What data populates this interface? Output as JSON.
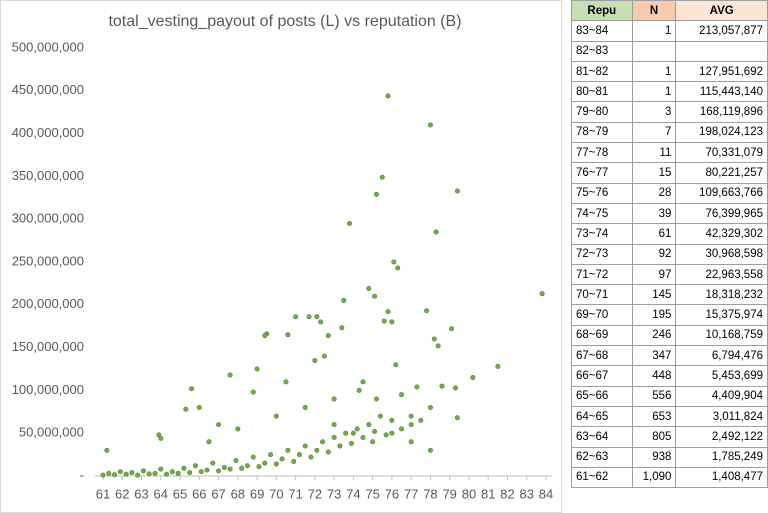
{
  "chart_data": {
    "type": "scatter",
    "title": "total_vesting_payout of posts (L) vs reputation (B)",
    "color": "#70ad47",
    "edge_color": "#548235",
    "grid": false,
    "xlim": [
      61,
      84
    ],
    "xticks": [
      61,
      62,
      63,
      64,
      65,
      66,
      67,
      68,
      69,
      70,
      71,
      72,
      73,
      74,
      75,
      76,
      77,
      78,
      79,
      80,
      81,
      82,
      83,
      84
    ],
    "ylim": [
      0,
      500000000
    ],
    "yticks": [
      {
        "value": 0,
        "label": "-"
      },
      {
        "value": 50000000,
        "label": "50,000,000"
      },
      {
        "value": 100000000,
        "label": "100,000,000"
      },
      {
        "value": 150000000,
        "label": "150,000,000"
      },
      {
        "value": 200000000,
        "label": "200,000,000"
      },
      {
        "value": 250000000,
        "label": "250,000,000"
      },
      {
        "value": 300000000,
        "label": "300,000,000"
      },
      {
        "value": 350000000,
        "label": "350,000,000"
      },
      {
        "value": 400000000,
        "label": "400,000,000"
      },
      {
        "value": 450000000,
        "label": "450,000,000"
      },
      {
        "value": 500000000,
        "label": "500,000,000"
      }
    ],
    "x": [
      83.8,
      81.5,
      80.2,
      79.4,
      79.3,
      79.4,
      79.1,
      78.3,
      78.0,
      78.2,
      78.4,
      78.6,
      78.0,
      77.8,
      77.3,
      76.1,
      76.3,
      75.8,
      75.5,
      75.2,
      74.8,
      75.1,
      75.8,
      76.0,
      75.6,
      76.2,
      73.8,
      73.5,
      73.4,
      72.7,
      71.7,
      72.1,
      72.3,
      72.0,
      71.0,
      70.6,
      69.5,
      69.4,
      69.0,
      67.6,
      68.8,
      65.6,
      65.3,
      66.0,
      63.9,
      64.0,
      74.3,
      74.5,
      75.2,
      76.5,
      77.0,
      73.0,
      72.5,
      70.5,
      71.5,
      68.0,
      67.0,
      66.5,
      70.0,
      73.0,
      74.0,
      75.0,
      76.0,
      77.0,
      78.0,
      61.2,
      61.0,
      61.3,
      61.6,
      61.9,
      62.2,
      62.5,
      62.8,
      63.1,
      63.4,
      63.7,
      64.0,
      64.3,
      64.6,
      64.9,
      65.2,
      65.5,
      65.8,
      66.1,
      66.4,
      66.7,
      67.0,
      67.3,
      67.6,
      67.9,
      68.2,
      68.5,
      68.8,
      69.1,
      69.4,
      69.7,
      70.0,
      70.3,
      70.6,
      70.9,
      71.2,
      71.5,
      71.8,
      72.1,
      72.4,
      72.7,
      73.0,
      73.3,
      73.6,
      73.9,
      74.2,
      74.5,
      74.8,
      75.1,
      75.4,
      75.7,
      76.0,
      76.5,
      77.0,
      77.5
    ],
    "values": [
      213000000,
      128000000,
      115000000,
      333000000,
      103000000,
      68000000,
      172000000,
      285000000,
      410000000,
      160000000,
      152000000,
      105000000,
      80000000,
      193000000,
      104000000,
      250000000,
      243000000,
      444000000,
      349000000,
      329000000,
      219000000,
      210000000,
      192000000,
      180000000,
      181000000,
      130000000,
      295000000,
      205000000,
      173000000,
      164000000,
      186000000,
      186000000,
      180000000,
      135000000,
      186000000,
      165000000,
      166000000,
      164000000,
      125000000,
      118000000,
      98000000,
      102000000,
      78000000,
      80000000,
      48000000,
      44000000,
      100000000,
      110000000,
      90000000,
      95000000,
      60000000,
      90000000,
      140000000,
      110000000,
      80000000,
      55000000,
      60000000,
      40000000,
      70000000,
      60000000,
      50000000,
      40000000,
      50000000,
      40000000,
      30000000,
      30000000,
      1000000,
      3000000,
      1500000,
      5000000,
      2000000,
      4000000,
      1000000,
      6000000,
      2500000,
      3000000,
      8000000,
      2000000,
      5000000,
      3000000,
      9000000,
      4000000,
      12000000,
      5000000,
      7000000,
      15000000,
      6000000,
      10000000,
      8000000,
      18000000,
      9000000,
      12000000,
      22000000,
      11000000,
      15000000,
      25000000,
      14000000,
      20000000,
      30000000,
      17000000,
      25000000,
      35000000,
      22000000,
      30000000,
      40000000,
      28000000,
      45000000,
      35000000,
      50000000,
      38000000,
      55000000,
      45000000,
      60000000,
      52000000,
      70000000,
      48000000,
      65000000,
      55000000,
      70000000,
      65000000
    ]
  },
  "table": {
    "header": [
      "Repu",
      "N",
      "AVG"
    ],
    "rows": [
      [
        "83~84",
        "1",
        "213,057,877"
      ],
      [
        "82~83",
        null,
        null
      ],
      [
        "81~82",
        "1",
        "127,951,692"
      ],
      [
        "80~81",
        "1",
        "115,443,140"
      ],
      [
        "79~80",
        "3",
        "168,119,896"
      ],
      [
        "78~79",
        "7",
        "198,024,123"
      ],
      [
        "77~78",
        "11",
        "70,331,079"
      ],
      [
        "76~77",
        "15",
        "80,221,257"
      ],
      [
        "75~76",
        "28",
        "109,663,766"
      ],
      [
        "74~75",
        "39",
        "76,399,965"
      ],
      [
        "73~74",
        "61",
        "42,329,302"
      ],
      [
        "72~73",
        "92",
        "30,968,598"
      ],
      [
        "71~72",
        "97",
        "22,963,558"
      ],
      [
        "70~71",
        "145",
        "18,318,232"
      ],
      [
        "69~70",
        "195",
        "15,375,974"
      ],
      [
        "68~69",
        "246",
        "10,168,759"
      ],
      [
        "67~68",
        "347",
        "6,794,476"
      ],
      [
        "66~67",
        "448",
        "5,453,699"
      ],
      [
        "65~66",
        "556",
        "4,409,904"
      ],
      [
        "64~65",
        "653",
        "3,011,824"
      ],
      [
        "63~64",
        "805",
        "2,492,122"
      ],
      [
        "62~63",
        "938",
        "1,785,249"
      ],
      [
        "61~62",
        "1,090",
        "1,408,477"
      ]
    ]
  }
}
